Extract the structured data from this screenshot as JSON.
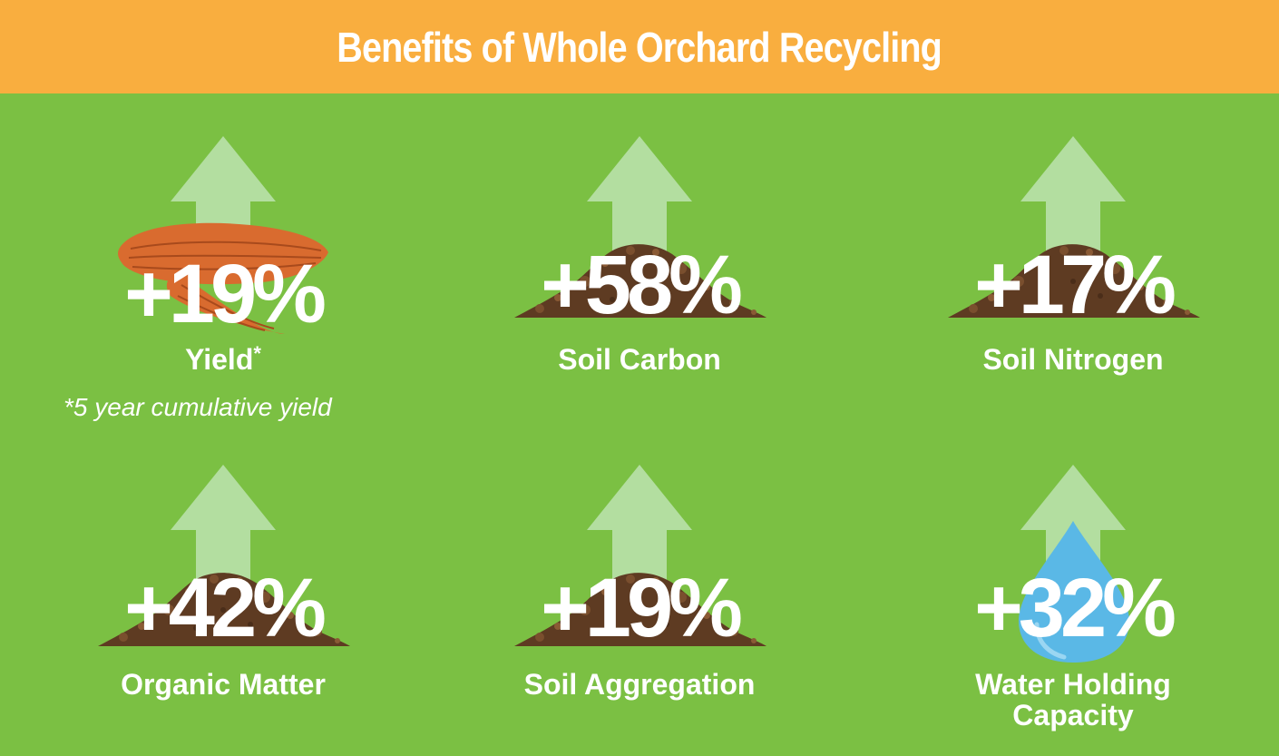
{
  "title": "Benefits of Whole Orchard Recycling",
  "colors": {
    "background": "#7bc043",
    "header": "#f9ae3f",
    "arrow": "#b3dea0",
    "soil": "#5e3b22",
    "almond": "#d96b2f",
    "water": "#5ab8e6",
    "text": "#ffffff"
  },
  "benefits": [
    {
      "value": "+19%",
      "label": "Yield",
      "marker": "*",
      "icon": "almond-icon"
    },
    {
      "value": "+58%",
      "label": "Soil Carbon",
      "icon": "soil-pile-icon"
    },
    {
      "value": "+17%",
      "label": "Soil Nitrogen",
      "icon": "soil-pile-icon"
    },
    {
      "value": "+42%",
      "label": "Organic Matter",
      "icon": "soil-pile-icon"
    },
    {
      "value": "+19%",
      "label": "Soil Aggregation",
      "icon": "soil-pile-icon"
    },
    {
      "value": "+32%",
      "label_line1": "Water Holding",
      "label_line2": "Capacity",
      "icon": "water-drop-icon"
    }
  ],
  "footnote": "*5 year cumulative yield"
}
